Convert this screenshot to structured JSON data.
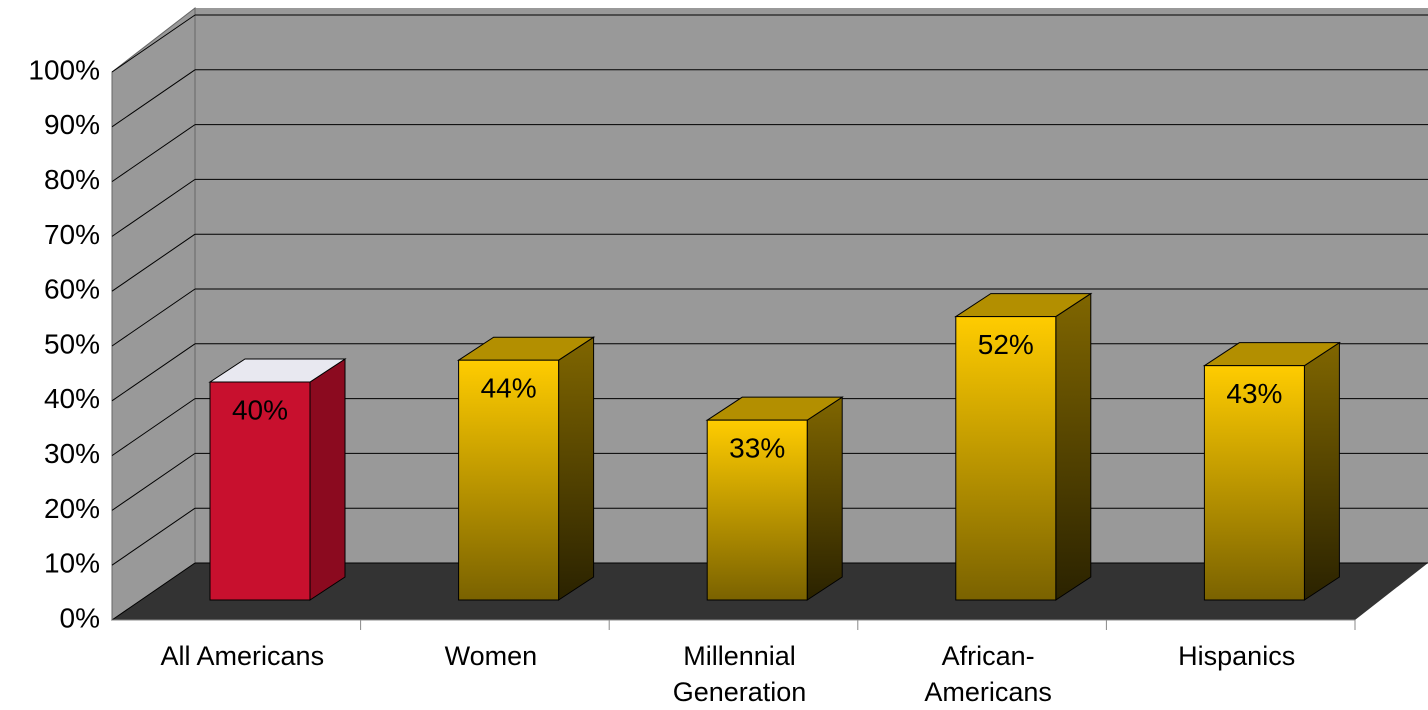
{
  "chart_data": {
    "type": "bar3d",
    "categories": [
      "All Americans",
      "Women",
      "Millennial Generation",
      "African-Americans",
      "Hispanics"
    ],
    "values": [
      40,
      44,
      33,
      52,
      43
    ],
    "value_labels": [
      "40%",
      "44%",
      "33%",
      "52%",
      "43%"
    ],
    "colors": [
      "#c8102e",
      "#ffcc00",
      "#ffcc00",
      "#ffcc00",
      "#ffcc00"
    ],
    "ylim": [
      0,
      100
    ],
    "yticks": [
      {
        "value": 0,
        "label": "0%"
      },
      {
        "value": 10,
        "label": "10%"
      },
      {
        "value": 20,
        "label": "20%"
      },
      {
        "value": 30,
        "label": "30%"
      },
      {
        "value": 40,
        "label": "40%"
      },
      {
        "value": 50,
        "label": "50%"
      },
      {
        "value": 60,
        "label": "60%"
      },
      {
        "value": 70,
        "label": "70%"
      },
      {
        "value": 80,
        "label": "80%"
      },
      {
        "value": 90,
        "label": "90%"
      },
      {
        "value": 100,
        "label": "100%"
      }
    ],
    "grid": true
  }
}
